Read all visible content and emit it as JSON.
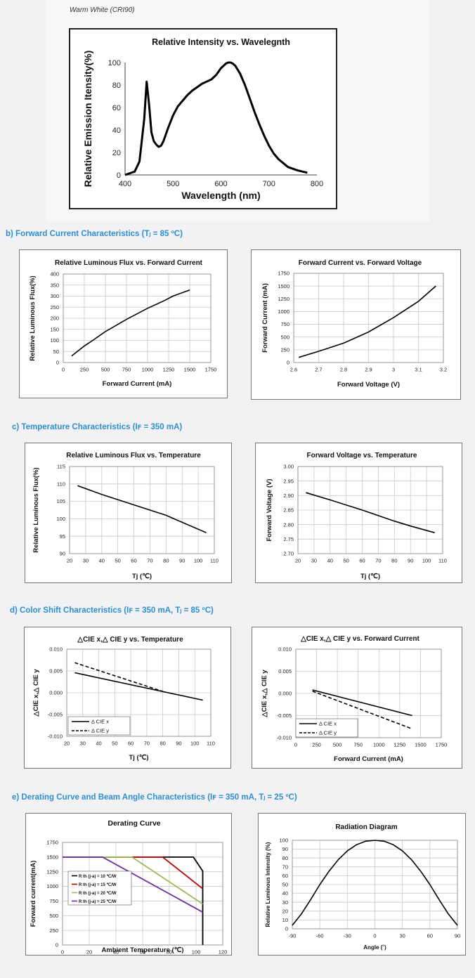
{
  "top": {
    "subtitle": "Warm White (CRI90)"
  },
  "sections": {
    "b": "b)  Forward Current Characteristics    (Tⱼ = 85 ºC)",
    "c": "c)  Temperature Characteristics    (Iꜰ = 350 mA)",
    "d": "d)  Color Shift Characteristics    (Iꜰ = 350 mA, Tⱼ = 85 ºC)",
    "e": "e)  Derating Curve and Beam Angle Characteristics    (Iꜰ = 350 mA, Tⱼ = 25 ºC)"
  },
  "colors": {
    "section": "#2e8fd0",
    "line": "#000000",
    "grid": "#c8c8c8",
    "rth10": "#000000",
    "rth15": "#c00000",
    "rth20": "#9bbb59",
    "rth25": "#7030a0"
  },
  "chart_data": [
    {
      "id": "spectrum",
      "type": "line",
      "title": "Relative Intensity vs. Wavelegnth",
      "xlabel": "Wavelength (nm)",
      "ylabel": "Relative Emission Itensity(%)",
      "xlim": [
        400,
        800
      ],
      "ylim": [
        0,
        100
      ],
      "xticks": [
        400,
        500,
        600,
        700,
        800
      ],
      "yticks": [
        0,
        20,
        40,
        60,
        80,
        100
      ],
      "grid": false,
      "series": [
        {
          "name": "Warm White",
          "dash": false,
          "x": [
            400,
            420,
            430,
            440,
            445,
            450,
            455,
            460,
            465,
            470,
            475,
            480,
            490,
            500,
            510,
            520,
            530,
            540,
            550,
            560,
            570,
            580,
            590,
            600,
            610,
            615,
            620,
            625,
            630,
            640,
            650,
            660,
            670,
            680,
            690,
            700,
            710,
            720,
            740,
            760,
            780
          ],
          "y": [
            0,
            3,
            12,
            50,
            83,
            63,
            38,
            30,
            27,
            25,
            26,
            30,
            42,
            53,
            61,
            66,
            71,
            75,
            78,
            81,
            83,
            85,
            89,
            95,
            99,
            100,
            100,
            99,
            97,
            90,
            80,
            68,
            56,
            45,
            35,
            26,
            19,
            14,
            7,
            4,
            2
          ]
        }
      ]
    },
    {
      "id": "flux-current",
      "type": "line",
      "title": "Relative Luminous Flux vs. Forward Current",
      "xlabel": "Forward Current (mA)",
      "ylabel": "Relative Luminous Flux(%)",
      "xlim": [
        0,
        1750
      ],
      "ylim": [
        0,
        400
      ],
      "xticks": [
        0,
        250,
        500,
        750,
        1000,
        1250,
        1500,
        1750
      ],
      "yticks": [
        0,
        50,
        100,
        150,
        200,
        250,
        300,
        350,
        400
      ],
      "grid": true,
      "series": [
        {
          "name": "flux",
          "dash": false,
          "x": [
            100,
            250,
            350,
            500,
            750,
            1000,
            1200,
            1300,
            1500
          ],
          "y": [
            30,
            75,
            100,
            140,
            195,
            245,
            280,
            300,
            328
          ]
        }
      ]
    },
    {
      "id": "current-voltage",
      "type": "line",
      "title": "Forward Current vs. Forward Voltage",
      "xlabel": "Forward Voltage (V)",
      "ylabel": "Forward Current (mA)",
      "xlim": [
        2.6,
        3.2
      ],
      "ylim": [
        0,
        1750
      ],
      "xticks": [
        2.6,
        2.7,
        2.8,
        2.9,
        3,
        3.1,
        3.2
      ],
      "yticks": [
        0,
        250,
        500,
        750,
        1000,
        1250,
        1500,
        1750
      ],
      "grid": true,
      "series": [
        {
          "name": "If",
          "dash": false,
          "x": [
            2.62,
            2.7,
            2.8,
            2.9,
            3.0,
            3.1,
            3.17
          ],
          "y": [
            100,
            220,
            380,
            600,
            880,
            1200,
            1500
          ]
        }
      ]
    },
    {
      "id": "flux-temp",
      "type": "line",
      "title": "Relative Luminous Flux vs. Temperature",
      "xlabel": "Tj (℃)",
      "ylabel": "Relative Luminous Flux(%)",
      "xlim": [
        20,
        110
      ],
      "ylim": [
        90,
        115
      ],
      "xticks": [
        20,
        30,
        40,
        50,
        60,
        70,
        80,
        90,
        100,
        110
      ],
      "yticks": [
        90,
        95,
        100,
        105,
        110,
        115
      ],
      "grid": true,
      "series": [
        {
          "name": "flux",
          "dash": false,
          "x": [
            25,
            40,
            60,
            80,
            90,
            105
          ],
          "y": [
            109.5,
            107,
            104,
            101,
            99,
            96
          ]
        }
      ]
    },
    {
      "id": "voltage-temp",
      "type": "line",
      "title": "Forward Voltage vs. Temperature",
      "xlabel": "Tj (℃)",
      "ylabel": "Forward Voltage (V)",
      "xlim": [
        20,
        110
      ],
      "ylim": [
        2.7,
        3.0
      ],
      "xticks": [
        20,
        30,
        40,
        50,
        60,
        70,
        80,
        90,
        100,
        110
      ],
      "yticks": [
        2.7,
        2.75,
        2.8,
        2.85,
        2.9,
        2.95,
        3.0
      ],
      "ytickdigits": 2,
      "grid": true,
      "series": [
        {
          "name": "Vf",
          "dash": false,
          "x": [
            25,
            40,
            60,
            80,
            90,
            105
          ],
          "y": [
            2.91,
            2.885,
            2.85,
            2.812,
            2.795,
            2.772
          ]
        }
      ]
    },
    {
      "id": "cie-temp",
      "type": "line",
      "title": "△CIE x,△ CIE y vs. Temperature",
      "xlabel": "Tj (℃)",
      "ylabel": "△CIE x,△ CIE y",
      "xlim": [
        20,
        110
      ],
      "ylim": [
        -0.01,
        0.01
      ],
      "xticks": [
        20,
        30,
        40,
        50,
        60,
        70,
        80,
        90,
        100,
        110
      ],
      "yticks": [
        -0.01,
        -0.005,
        0.0,
        0.005,
        0.01
      ],
      "ytickdigits": 3,
      "grid": true,
      "legend": [
        "Δ CIE x",
        "Δ CIE y"
      ],
      "series": [
        {
          "name": "Δ CIE x",
          "dash": false,
          "x": [
            25,
            105
          ],
          "y": [
            0.0046,
            -0.0017
          ]
        },
        {
          "name": "Δ CIE y",
          "dash": true,
          "x": [
            25,
            80
          ],
          "y": [
            0.0069,
            0.0003
          ]
        }
      ]
    },
    {
      "id": "cie-current",
      "type": "line",
      "title": "△CIE x,△ CIE y vs. Forward Current",
      "xlabel": "Forward Current (mA)",
      "ylabel": "△CIE x,△ CIE y",
      "xlim": [
        0,
        1750
      ],
      "ylim": [
        -0.01,
        0.01
      ],
      "xticks": [
        0,
        250,
        500,
        750,
        1000,
        1250,
        1500,
        1750
      ],
      "yticks": [
        -0.01,
        -0.005,
        0.0,
        0.005,
        0.01
      ],
      "xticklabels": [
        "0",
        "250",
        "500",
        "750",
        "1000",
        "1250",
        "1500",
        "1750"
      ],
      "ytickdigits": 3,
      "grid": true,
      "legend": [
        "Δ CIE x",
        "Δ CIE y"
      ],
      "series": [
        {
          "name": "Δ CIE x",
          "dash": false,
          "x": [
            200,
            1400
          ],
          "y": [
            0.0008,
            -0.005
          ]
        },
        {
          "name": "Δ CIE y",
          "dash": true,
          "x": [
            200,
            1400
          ],
          "y": [
            0.0005,
            -0.008
          ]
        }
      ]
    },
    {
      "id": "derating",
      "type": "line",
      "title": "Derating Curve",
      "xlabel": "Ambient Temperature (℃)",
      "ylabel": "Forward current(mA)",
      "xlim": [
        0,
        120
      ],
      "ylim": [
        0,
        1750
      ],
      "xticks": [
        0,
        20,
        40,
        60,
        80,
        100,
        120
      ],
      "yticks": [
        0,
        250,
        500,
        750,
        1000,
        1250,
        1500,
        1750
      ],
      "grid": true,
      "legend": [
        "R th (j-a) = 10 ℃/W",
        "R th (j-a) = 15 ℃/W",
        "R th (j-a) = 20 ℃/W",
        "R th (j-a) = 25 ℃/W"
      ],
      "series": [
        {
          "name": "R th (j-a) = 10 ℃/W",
          "color": "#000000",
          "dash": false,
          "x": [
            0,
            98,
            105,
            105
          ],
          "y": [
            1500,
            1500,
            1260,
            0
          ]
        },
        {
          "name": "R th (j-a) = 15 ℃/W",
          "color": "#c00000",
          "dash": false,
          "x": [
            0,
            75,
            105
          ],
          "y": [
            1500,
            1500,
            960
          ]
        },
        {
          "name": "R th (j-a) = 20 ℃/W",
          "color": "#9bbb59",
          "dash": false,
          "x": [
            0,
            52,
            105
          ],
          "y": [
            1500,
            1500,
            700
          ]
        },
        {
          "name": "R th (j-a) = 25 ℃/W",
          "color": "#7030a0",
          "dash": false,
          "x": [
            0,
            30,
            105
          ],
          "y": [
            1500,
            1500,
            560
          ]
        }
      ]
    },
    {
      "id": "radiation",
      "type": "line",
      "title": "Radiation Diagram",
      "xlabel": "Angle (˚)",
      "ylabel": "Relative Luminous Intensity (%)",
      "xlim": [
        -90,
        90
      ],
      "ylim": [
        0,
        100
      ],
      "xticks": [
        -90,
        -60,
        -30,
        0,
        30,
        60,
        90
      ],
      "yticks": [
        0,
        10,
        20,
        30,
        40,
        50,
        60,
        70,
        80,
        90,
        100
      ],
      "grid": true,
      "series": [
        {
          "name": "beam",
          "dash": false,
          "x": [
            -90,
            -80,
            -70,
            -60,
            -50,
            -40,
            -30,
            -20,
            -10,
            0,
            10,
            20,
            30,
            40,
            50,
            60,
            70,
            80,
            90
          ],
          "y": [
            4,
            17,
            33,
            50,
            65,
            78,
            88,
            95,
            99,
            100,
            99,
            95,
            88,
            78,
            65,
            50,
            33,
            17,
            4
          ]
        }
      ]
    }
  ]
}
